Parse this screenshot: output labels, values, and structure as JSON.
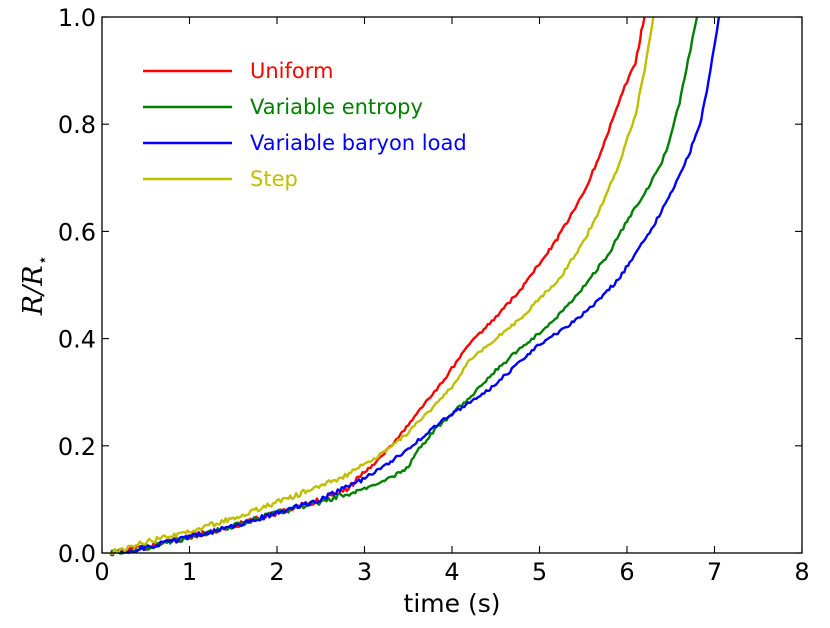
{
  "chart_data": {
    "type": "line",
    "title": "",
    "xlabel": "time (s)",
    "ylabel": {
      "text": "R/R⋆",
      "main": "R/R",
      "subscript": "⋆"
    },
    "xlim": [
      0,
      8
    ],
    "ylim": [
      0.0,
      1.0
    ],
    "xticks": [
      0,
      1,
      2,
      3,
      4,
      5,
      6,
      7,
      8
    ],
    "xtick_labels": [
      "0",
      "1",
      "2",
      "3",
      "4",
      "5",
      "6",
      "7",
      "8"
    ],
    "yticks": [
      0.0,
      0.2,
      0.4,
      0.6,
      0.8,
      1.0
    ],
    "ytick_labels": [
      "0.0",
      "0.2",
      "0.4",
      "0.6",
      "0.8",
      "1.0"
    ],
    "grid": false,
    "legend_position": "top-left",
    "series": [
      {
        "name": "Uniform",
        "color": "#ff0000",
        "x": [
          0.1,
          0.5,
          1.0,
          1.5,
          2.0,
          2.5,
          2.8,
          3.0,
          3.2,
          3.5,
          3.8,
          4.0,
          4.2,
          4.5,
          4.8,
          5.0,
          5.2,
          5.5,
          5.7,
          5.9,
          6.0,
          6.1,
          6.15,
          6.2
        ],
        "y": [
          0.0,
          0.01,
          0.03,
          0.05,
          0.075,
          0.1,
          0.12,
          0.15,
          0.18,
          0.24,
          0.3,
          0.345,
          0.39,
          0.44,
          0.495,
          0.54,
          0.585,
          0.67,
          0.745,
          0.84,
          0.88,
          0.915,
          0.96,
          1.0
        ]
      },
      {
        "name": "Variable entropy",
        "color": "#008000",
        "x": [
          0.1,
          0.5,
          1.0,
          1.5,
          2.0,
          2.5,
          3.0,
          3.3,
          3.5,
          3.6,
          3.8,
          4.0,
          4.2,
          4.5,
          4.8,
          5.0,
          5.2,
          5.5,
          5.8,
          6.0,
          6.2,
          6.4,
          6.5,
          6.6,
          6.7,
          6.8
        ],
        "y": [
          0.0,
          0.01,
          0.03,
          0.05,
          0.075,
          0.095,
          0.12,
          0.14,
          0.16,
          0.19,
          0.23,
          0.26,
          0.29,
          0.34,
          0.385,
          0.41,
          0.44,
          0.495,
          0.56,
          0.62,
          0.67,
          0.73,
          0.775,
          0.84,
          0.92,
          1.0
        ]
      },
      {
        "name": "Variable baryon load",
        "color": "#0000ff",
        "x": [
          0.1,
          0.5,
          1.0,
          1.5,
          2.0,
          2.5,
          3.0,
          3.3,
          3.5,
          3.8,
          4.0,
          4.3,
          4.5,
          4.8,
          5.0,
          5.3,
          5.6,
          5.9,
          6.1,
          6.3,
          6.5,
          6.7,
          6.85,
          6.95,
          7.05
        ],
        "y": [
          0.0,
          0.01,
          0.03,
          0.05,
          0.075,
          0.1,
          0.14,
          0.17,
          0.195,
          0.235,
          0.26,
          0.29,
          0.315,
          0.36,
          0.39,
          0.42,
          0.46,
          0.51,
          0.56,
          0.61,
          0.67,
          0.74,
          0.81,
          0.9,
          1.0
        ]
      },
      {
        "name": "Step",
        "color": "#bfbf00",
        "x": [
          0.1,
          0.5,
          1.0,
          1.5,
          2.0,
          2.5,
          2.8,
          3.0,
          3.2,
          3.5,
          3.8,
          4.0,
          4.2,
          4.5,
          4.8,
          5.0,
          5.2,
          5.5,
          5.7,
          5.9,
          6.1,
          6.2,
          6.3
        ],
        "y": [
          0.0,
          0.02,
          0.04,
          0.065,
          0.095,
          0.125,
          0.145,
          0.165,
          0.185,
          0.225,
          0.275,
          0.31,
          0.36,
          0.4,
          0.44,
          0.475,
          0.505,
          0.58,
          0.645,
          0.72,
          0.82,
          0.9,
          1.0
        ]
      }
    ]
  }
}
